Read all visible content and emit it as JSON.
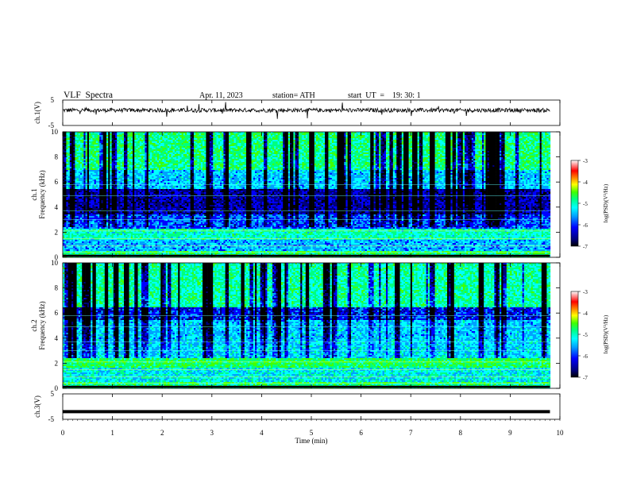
{
  "header": {
    "title": "VLF  Spectra",
    "date": "Apr. 11, 2023",
    "station": "station= ATH",
    "start": "start  UT  =    19: 30: 1"
  },
  "chart_data": [
    {
      "type": "line",
      "name_label": "ch.1(V)",
      "ylim": [
        -5,
        5
      ],
      "yticks": [
        "5",
        "-5"
      ],
      "description_values": "continuous noisy waveform near +1 V with occasional spikes"
    },
    {
      "type": "heatmap",
      "ylabel": "ch.1\nFrequency (kHz)",
      "ylim": [
        0,
        10
      ],
      "yticks": [
        "0",
        "2",
        "4",
        "6",
        "8",
        "10"
      ],
      "colorbar": {
        "label": "log(PSD)(V²/Hz)",
        "range": [
          -7,
          -3
        ],
        "ticks": [
          "-3",
          "-4",
          "-5",
          "-6",
          "-7"
        ]
      }
    },
    {
      "type": "heatmap",
      "ylabel": "ch.2\nFrequency (kHz)",
      "ylim": [
        0,
        10
      ],
      "yticks": [
        "0",
        "2",
        "4",
        "6",
        "8",
        "10"
      ],
      "colorbar": {
        "label": "log(PSD)(V²/Hz)",
        "range": [
          -7,
          -3
        ],
        "ticks": [
          "-3",
          "-4",
          "-5",
          "-6",
          "-7"
        ]
      }
    },
    {
      "type": "line",
      "name_label": "ch.3(V)",
      "ylim": [
        -5,
        5
      ],
      "yticks": [
        "5",
        "-5"
      ],
      "constant_value": -2
    }
  ],
  "xaxis": {
    "label": "Time  (min)",
    "range": [
      0,
      10
    ],
    "ticks": [
      "0",
      "1",
      "2",
      "3",
      "4",
      "5",
      "6",
      "7",
      "8",
      "9",
      "10"
    ],
    "data_end": 9.8
  },
  "colors": {
    "colormap": [
      "#000000",
      "#00007a",
      "#0000ff",
      "#00a0ff",
      "#00ffff",
      "#00ff80",
      "#40ff00",
      "#ffff00",
      "#ff8000",
      "#ff0000",
      "#ffffff"
    ]
  }
}
